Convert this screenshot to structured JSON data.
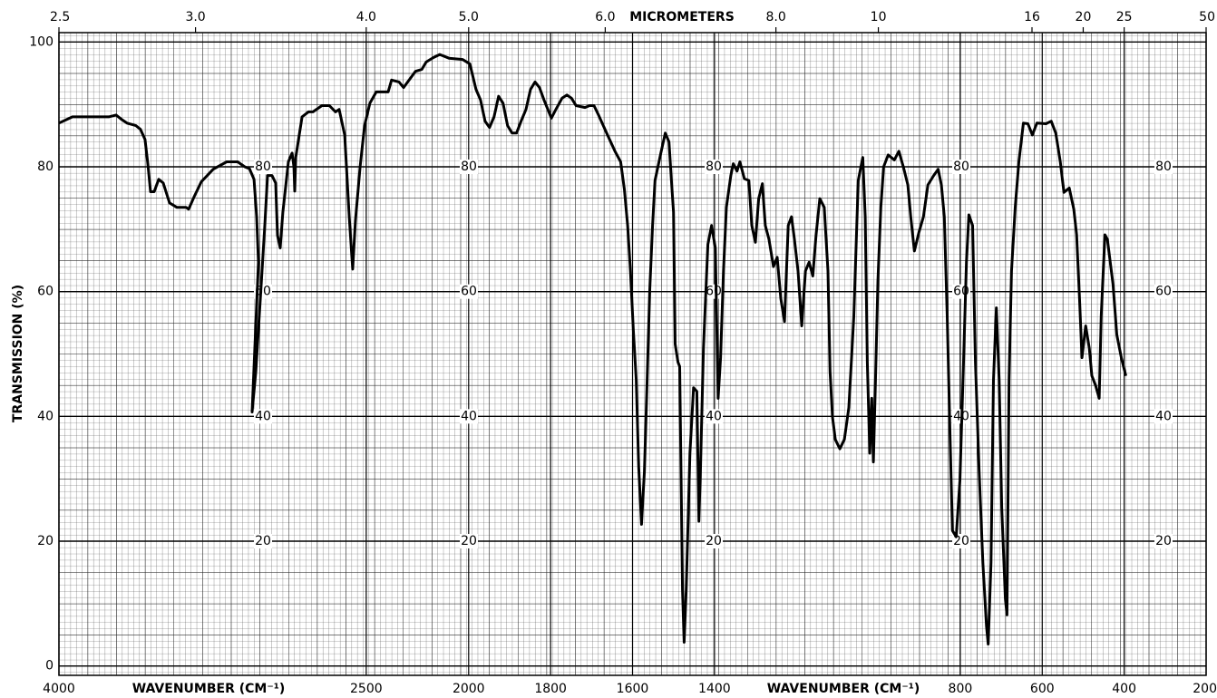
{
  "chart_data": {
    "type": "line",
    "y_label": "TRANSMISSION (%)",
    "x_label": "WAVENUMBER (CM⁻¹)",
    "x2_label": "MICROMETERS",
    "color": "#000000",
    "grid": true,
    "xlim": [
      4000,
      200
    ],
    "x_scale_change": {
      "at": 2000,
      "ratio": 2
    },
    "ylim": [
      -1.5,
      101.5
    ],
    "yticks": [
      0,
      20,
      40,
      60,
      80,
      100
    ],
    "xticks": [
      4000,
      2500,
      2000,
      1800,
      1600,
      1400,
      800,
      600,
      400,
      200
    ],
    "x2ticks": [
      2.5,
      {
        "value": 3,
        "label": "3.0"
      },
      {
        "value": 4,
        "label": "4.0"
      },
      {
        "value": 5,
        "label": "5.0"
      },
      {
        "value": 6,
        "label": "6.0"
      },
      {
        "value": 8,
        "label": "8.0"
      },
      10,
      16,
      20,
      25,
      50
    ],
    "x": [
      4000,
      3934,
      3845,
      3757,
      3721,
      3690,
      3668,
      3624,
      3602,
      3580,
      3566,
      3553,
      3535,
      3513,
      3491,
      3460,
      3425,
      3380,
      3367,
      3340,
      3305,
      3247,
      3181,
      3128,
      3093,
      3070,
      3048,
      3035,
      3026,
      3057,
      3039,
      3017,
      2995,
      2982,
      2960,
      2942,
      2933,
      2920,
      2907,
      2880,
      2862,
      2853,
      2849,
      2844,
      2813,
      2782,
      2760,
      2716,
      2680,
      2650,
      2632,
      2605,
      2583,
      2566,
      2553,
      2530,
      2508,
      2482,
      2451,
      2393,
      2376,
      2340,
      2318,
      2260,
      2229,
      2207,
      2172,
      2141,
      2096,
      2030,
      1997,
      1982,
      1971,
      1960,
      1949,
      1938,
      1927,
      1916,
      1905,
      1894,
      1883,
      1872,
      1860,
      1849,
      1838,
      1827,
      1816,
      1798,
      1787,
      1772,
      1760,
      1749,
      1738,
      1716,
      1705,
      1694,
      1683,
      1661,
      1643,
      1629,
      1620,
      1612,
      1605,
      1598,
      1591,
      1585,
      1578,
      1571,
      1565,
      1558,
      1551,
      1545,
      1531,
      1520,
      1511,
      1505,
      1500,
      1496,
      1489,
      1485,
      1478,
      1474,
      1469,
      1460,
      1451,
      1443,
      1438,
      1434,
      1427,
      1416,
      1407,
      1398,
      1391,
      1385,
      1378,
      1371,
      1360,
      1354,
      1345,
      1338,
      1327,
      1316,
      1309,
      1300,
      1292,
      1283,
      1276,
      1267,
      1256,
      1247,
      1238,
      1229,
      1220,
      1212,
      1205,
      1196,
      1187,
      1178,
      1169,
      1160,
      1152,
      1143,
      1132,
      1123,
      1118,
      1112,
      1105,
      1094,
      1083,
      1072,
      1060,
      1049,
      1038,
      1032,
      1027,
      1021,
      1016,
      1012,
      1007,
      1001,
      994,
      987,
      976,
      961,
      950,
      939,
      928,
      921,
      912,
      901,
      890,
      879,
      865,
      854,
      846,
      839,
      832,
      825,
      819,
      810,
      801,
      792,
      785,
      779,
      770,
      763,
      754,
      745,
      736,
      732,
      725,
      719,
      712,
      705,
      699,
      690,
      686,
      681,
      675,
      666,
      657,
      646,
      635,
      624,
      613,
      591,
      578,
      567,
      556,
      547,
      534,
      523,
      516,
      509,
      503,
      494,
      485,
      479,
      470,
      461,
      456,
      447,
      441,
      427,
      418,
      407,
      396
    ],
    "values": [
      87,
      88,
      88,
      88,
      88.3,
      87.5,
      87,
      86.6,
      86,
      84.4,
      80.5,
      76,
      76,
      78,
      77.4,
      74.2,
      73.5,
      73.5,
      73.2,
      75.2,
      77.6,
      79.6,
      80.8,
      80.8,
      80,
      79.7,
      78,
      72,
      64.7,
      40.7,
      47.2,
      58.9,
      70.6,
      78.6,
      78.6,
      77.4,
      69,
      67,
      72.7,
      80.8,
      82.2,
      80,
      76.1,
      81.5,
      88,
      88.8,
      88.8,
      89.8,
      89.8,
      88.8,
      89.2,
      85.1,
      72,
      63.6,
      71.3,
      80,
      86.6,
      90.2,
      92,
      92,
      93.9,
      93.6,
      92.7,
      95.3,
      95.6,
      96.8,
      97.5,
      98,
      97.4,
      97.2,
      96.5,
      92.4,
      90.7,
      87.3,
      86.3,
      88,
      91.3,
      90.2,
      86.6,
      85.4,
      85.4,
      87.3,
      89.2,
      92.4,
      93.6,
      92.7,
      90.7,
      87.8,
      89.2,
      91,
      91.5,
      91,
      89.8,
      89.5,
      89.8,
      89.8,
      88.3,
      85.1,
      82.5,
      80.8,
      76.4,
      70.6,
      63.3,
      53.8,
      45.8,
      31.9,
      22.7,
      31.2,
      44.3,
      60.3,
      70.6,
      77.8,
      82.2,
      85.4,
      84,
      77.8,
      72.7,
      51.6,
      48.7,
      48,
      12.2,
      3.8,
      12.2,
      34.1,
      44.6,
      44,
      23.2,
      31.9,
      50.9,
      67.6,
      70.6,
      67,
      42.9,
      49.4,
      63.3,
      73.5,
      78.6,
      80.5,
      79.3,
      80.8,
      78.1,
      77.8,
      70.6,
      67.9,
      74.9,
      77.3,
      70.6,
      68.4,
      64,
      65.5,
      58.9,
      55.2,
      70.6,
      72,
      68.4,
      63.3,
      54.5,
      63.3,
      64.7,
      62.5,
      69.1,
      74.9,
      73.5,
      63.3,
      47.2,
      39.9,
      36.3,
      34.8,
      36.3,
      41.4,
      56,
      77.8,
      81.5,
      72,
      48.7,
      34.1,
      42.9,
      32.7,
      45.8,
      61.8,
      73.5,
      80,
      81.9,
      81.1,
      82.5,
      80,
      77.1,
      72,
      66.5,
      69.5,
      72,
      77.1,
      78.6,
      79.6,
      77.1,
      72,
      56,
      37,
      21.7,
      20.7,
      29.7,
      48.7,
      64.7,
      72.3,
      70.6,
      48.7,
      31.2,
      16.6,
      6.4,
      3.5,
      16.6,
      45.8,
      57.4,
      45.8,
      25.4,
      10.8,
      8.2,
      45.8,
      63.3,
      73.5,
      80.8,
      87,
      86.9,
      85.1,
      87,
      86.9,
      87.3,
      85.4,
      80.8,
      75.9,
      76.6,
      73.2,
      69.1,
      58.9,
      49.4,
      54.5,
      50.9,
      46.5,
      45,
      42.9,
      56,
      69.1,
      68.4,
      61.1,
      53.1,
      49.4,
      46.5
    ]
  }
}
